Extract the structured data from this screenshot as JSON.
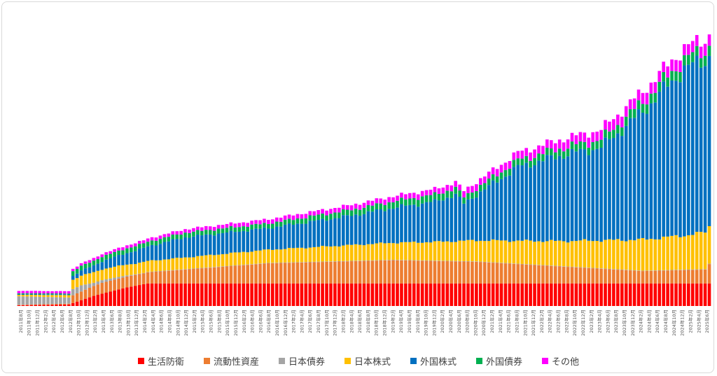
{
  "chart_data": {
    "type": "bar",
    "stacked": true,
    "title": "",
    "xlabel": "",
    "ylabel": "",
    "grid": false,
    "legend_position": "bottom",
    "x_start": "2011-08",
    "x_end": "2025-06",
    "tick_labels": [
      "2011年8月",
      "2011年10月",
      "2011年12月",
      "2012年2月",
      "2012年4月",
      "2012年6月",
      "2012年8月",
      "2012年10月",
      "2012年12月",
      "2013年2月",
      "2013年4月",
      "2013年6月",
      "2013年8月",
      "2013年10月",
      "2013年12月",
      "2014年2月",
      "2014年4月",
      "2014年6月",
      "2014年8月",
      "2014年10月",
      "2014年12月",
      "2015年2月",
      "2015年4月",
      "2015年6月",
      "2015年8月",
      "2015年10月",
      "2015年12月",
      "2016年2月",
      "2016年4月",
      "2016年6月",
      "2016年8月",
      "2016年10月",
      "2016年12月",
      "2017年2月",
      "2017年4月",
      "2017年6月",
      "2017年8月",
      "2017年10月",
      "2017年12月",
      "2018年2月",
      "2018年4月",
      "2018年6月",
      "2018年8月",
      "2018年10月",
      "2018年12月",
      "2019年2月",
      "2019年4月",
      "2019年6月",
      "2019年8月",
      "2019年10月",
      "2019年12月",
      "2020年2月",
      "2020年4月",
      "2020年6月",
      "2020年8月",
      "2020年10月",
      "2020年12月",
      "2021年2月",
      "2021年4月",
      "2021年6月",
      "2021年8月",
      "2021年10月",
      "2021年12月",
      "2022年2月",
      "2022年4月",
      "2022年6月",
      "2022年8月",
      "2022年10月",
      "2022年12月",
      "2023年2月",
      "2023年4月",
      "2023年6月",
      "2023年8月",
      "2023年10月",
      "2023年12月",
      "2024年2月",
      "2024年4月",
      "2024年6月",
      "2024年8月",
      "2024年10月",
      "2024年12月",
      "2025年2月",
      "2025年4月",
      "2025年6月"
    ],
    "series": [
      {
        "name": "生活防衛",
        "color": "#ff0000"
      },
      {
        "name": "流動性資産",
        "color": "#ed7d31"
      },
      {
        "name": "日本債券",
        "color": "#a5a5a5"
      },
      {
        "name": "日本株式",
        "color": "#ffc000"
      },
      {
        "name": "外国株式",
        "color": "#0070c0"
      },
      {
        "name": "外国債券",
        "color": "#00b050"
      },
      {
        "name": "その他",
        "color": "#ff00ff"
      }
    ],
    "series_keyframes": [
      {
        "name": "生活防衛",
        "points": [
          [
            0,
            1
          ],
          [
            12,
            2
          ],
          [
            18,
            13
          ],
          [
            26,
            24
          ],
          [
            31,
            29
          ],
          [
            175,
            29
          ],
          [
            176,
            43
          ],
          [
            166,
            43
          ]
        ]
      },
      {
        "name": "流動性資産",
        "points": [
          [
            0,
            0.5
          ],
          [
            12,
            1
          ],
          [
            13,
            10
          ],
          [
            20,
            14
          ],
          [
            30,
            14
          ],
          [
            60,
            26
          ],
          [
            90,
            30
          ],
          [
            110,
            28
          ],
          [
            130,
            22
          ],
          [
            150,
            16
          ],
          [
            165,
            18
          ],
          [
            166,
            25
          ],
          [
            167,
            25
          ],
          [
            176,
            20
          ]
        ]
      },
      {
        "name": "日本債券",
        "points": [
          [
            0,
            11
          ],
          [
            12,
            8
          ],
          [
            13,
            8
          ],
          [
            15,
            8
          ],
          [
            18,
            4
          ],
          [
            22,
            3
          ],
          [
            27,
            1
          ],
          [
            30,
            0.5
          ],
          [
            176,
            0.5
          ]
        ]
      },
      {
        "name": "日本株式",
        "points": [
          [
            0,
            2
          ],
          [
            12,
            3
          ],
          [
            13,
            12
          ],
          [
            20,
            14
          ],
          [
            30,
            14
          ],
          [
            60,
            17
          ],
          [
            90,
            22
          ],
          [
            100,
            24
          ],
          [
            110,
            27
          ],
          [
            130,
            32
          ],
          [
            150,
            40
          ],
          [
            160,
            44
          ],
          [
            166,
            48
          ],
          [
            167,
            56
          ],
          [
            170,
            40
          ],
          [
            176,
            40
          ]
        ]
      },
      {
        "name": "外国株式",
        "points": [
          [
            0,
            1
          ],
          [
            12,
            1
          ],
          [
            13,
            5
          ],
          [
            30,
            18
          ],
          [
            40,
            26
          ],
          [
            60,
            28
          ],
          [
            80,
            38
          ],
          [
            100,
            52
          ],
          [
            105,
            60
          ],
          [
            107,
            48
          ],
          [
            120,
            95
          ],
          [
            130,
            110
          ],
          [
            140,
            120
          ],
          [
            150,
            165
          ],
          [
            160,
            215
          ],
          [
            166,
            222
          ],
          [
            176,
            230
          ]
        ]
      },
      {
        "name": "外国債券",
        "points": [
          [
            0,
            1
          ],
          [
            12,
            1
          ],
          [
            13,
            6
          ],
          [
            30,
            6
          ],
          [
            60,
            6
          ],
          [
            100,
            9
          ],
          [
            110,
            8
          ],
          [
            140,
            10
          ],
          [
            150,
            12
          ],
          [
            166,
            13
          ],
          [
            176,
            12
          ]
        ]
      },
      {
        "name": "その他",
        "points": [
          [
            0,
            3
          ],
          [
            12,
            3
          ],
          [
            13,
            3
          ],
          [
            30,
            4
          ],
          [
            100,
            7
          ],
          [
            120,
            10
          ],
          [
            150,
            14
          ],
          [
            176,
            15
          ]
        ]
      }
    ],
    "bar_count": 167,
    "ylim": [
      0,
      340
    ]
  },
  "legend": [
    {
      "label": "生活防衛",
      "color": "#ff0000"
    },
    {
      "label": "流動性資産",
      "color": "#ed7d31"
    },
    {
      "label": "日本債券",
      "color": "#a5a5a5"
    },
    {
      "label": "日本株式",
      "color": "#ffc000"
    },
    {
      "label": "外国株式",
      "color": "#0070c0"
    },
    {
      "label": "外国債券",
      "color": "#00b050"
    },
    {
      "label": "その他",
      "color": "#ff00ff"
    }
  ]
}
